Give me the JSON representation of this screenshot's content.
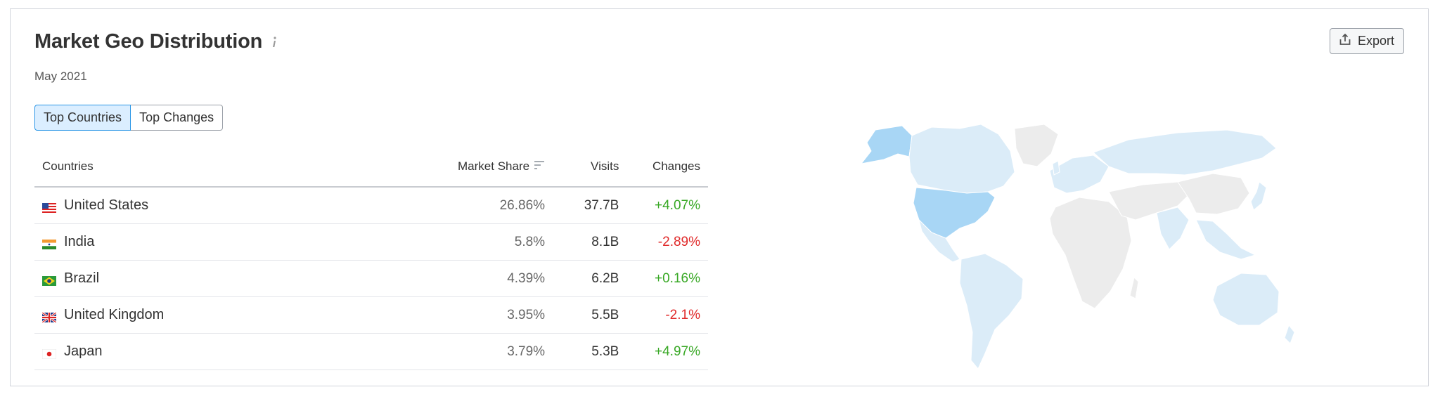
{
  "header": {
    "title": "Market Geo Distribution",
    "subtitle": "May 2021",
    "export_label": "Export"
  },
  "tabs": [
    {
      "label": "Top Countries",
      "active": true
    },
    {
      "label": "Top Changes",
      "active": false
    }
  ],
  "table": {
    "columns": [
      "Countries",
      "Market Share",
      "Visits",
      "Changes"
    ],
    "rows": [
      {
        "country": "United States",
        "flag": "us-flag",
        "share": "26.86%",
        "visits": "37.7B",
        "change": "+4.07%"
      },
      {
        "country": "India",
        "flag": "india-flag",
        "share": "5.8%",
        "visits": "8.1B",
        "change": "-2.89%"
      },
      {
        "country": "Brazil",
        "flag": "brazil-flag",
        "share": "4.39%",
        "visits": "6.2B",
        "change": "+0.16%"
      },
      {
        "country": "United Kingdom",
        "flag": "uk-flag",
        "share": "3.95%",
        "visits": "5.5B",
        "change": "-2.1%"
      },
      {
        "country": "Japan",
        "flag": "japan-flag",
        "share": "3.79%",
        "visits": "5.3B",
        "change": "+4.97%"
      }
    ]
  },
  "map": {
    "highlight_color": "#a8d6f5",
    "light_color": "#dbecf8",
    "neutral_color": "#ececec"
  },
  "colors": {
    "positive": "#38a825",
    "negative": "#e02a2a",
    "active_tab_bg": "#dbeeff",
    "active_tab_border": "#2b96e6"
  }
}
